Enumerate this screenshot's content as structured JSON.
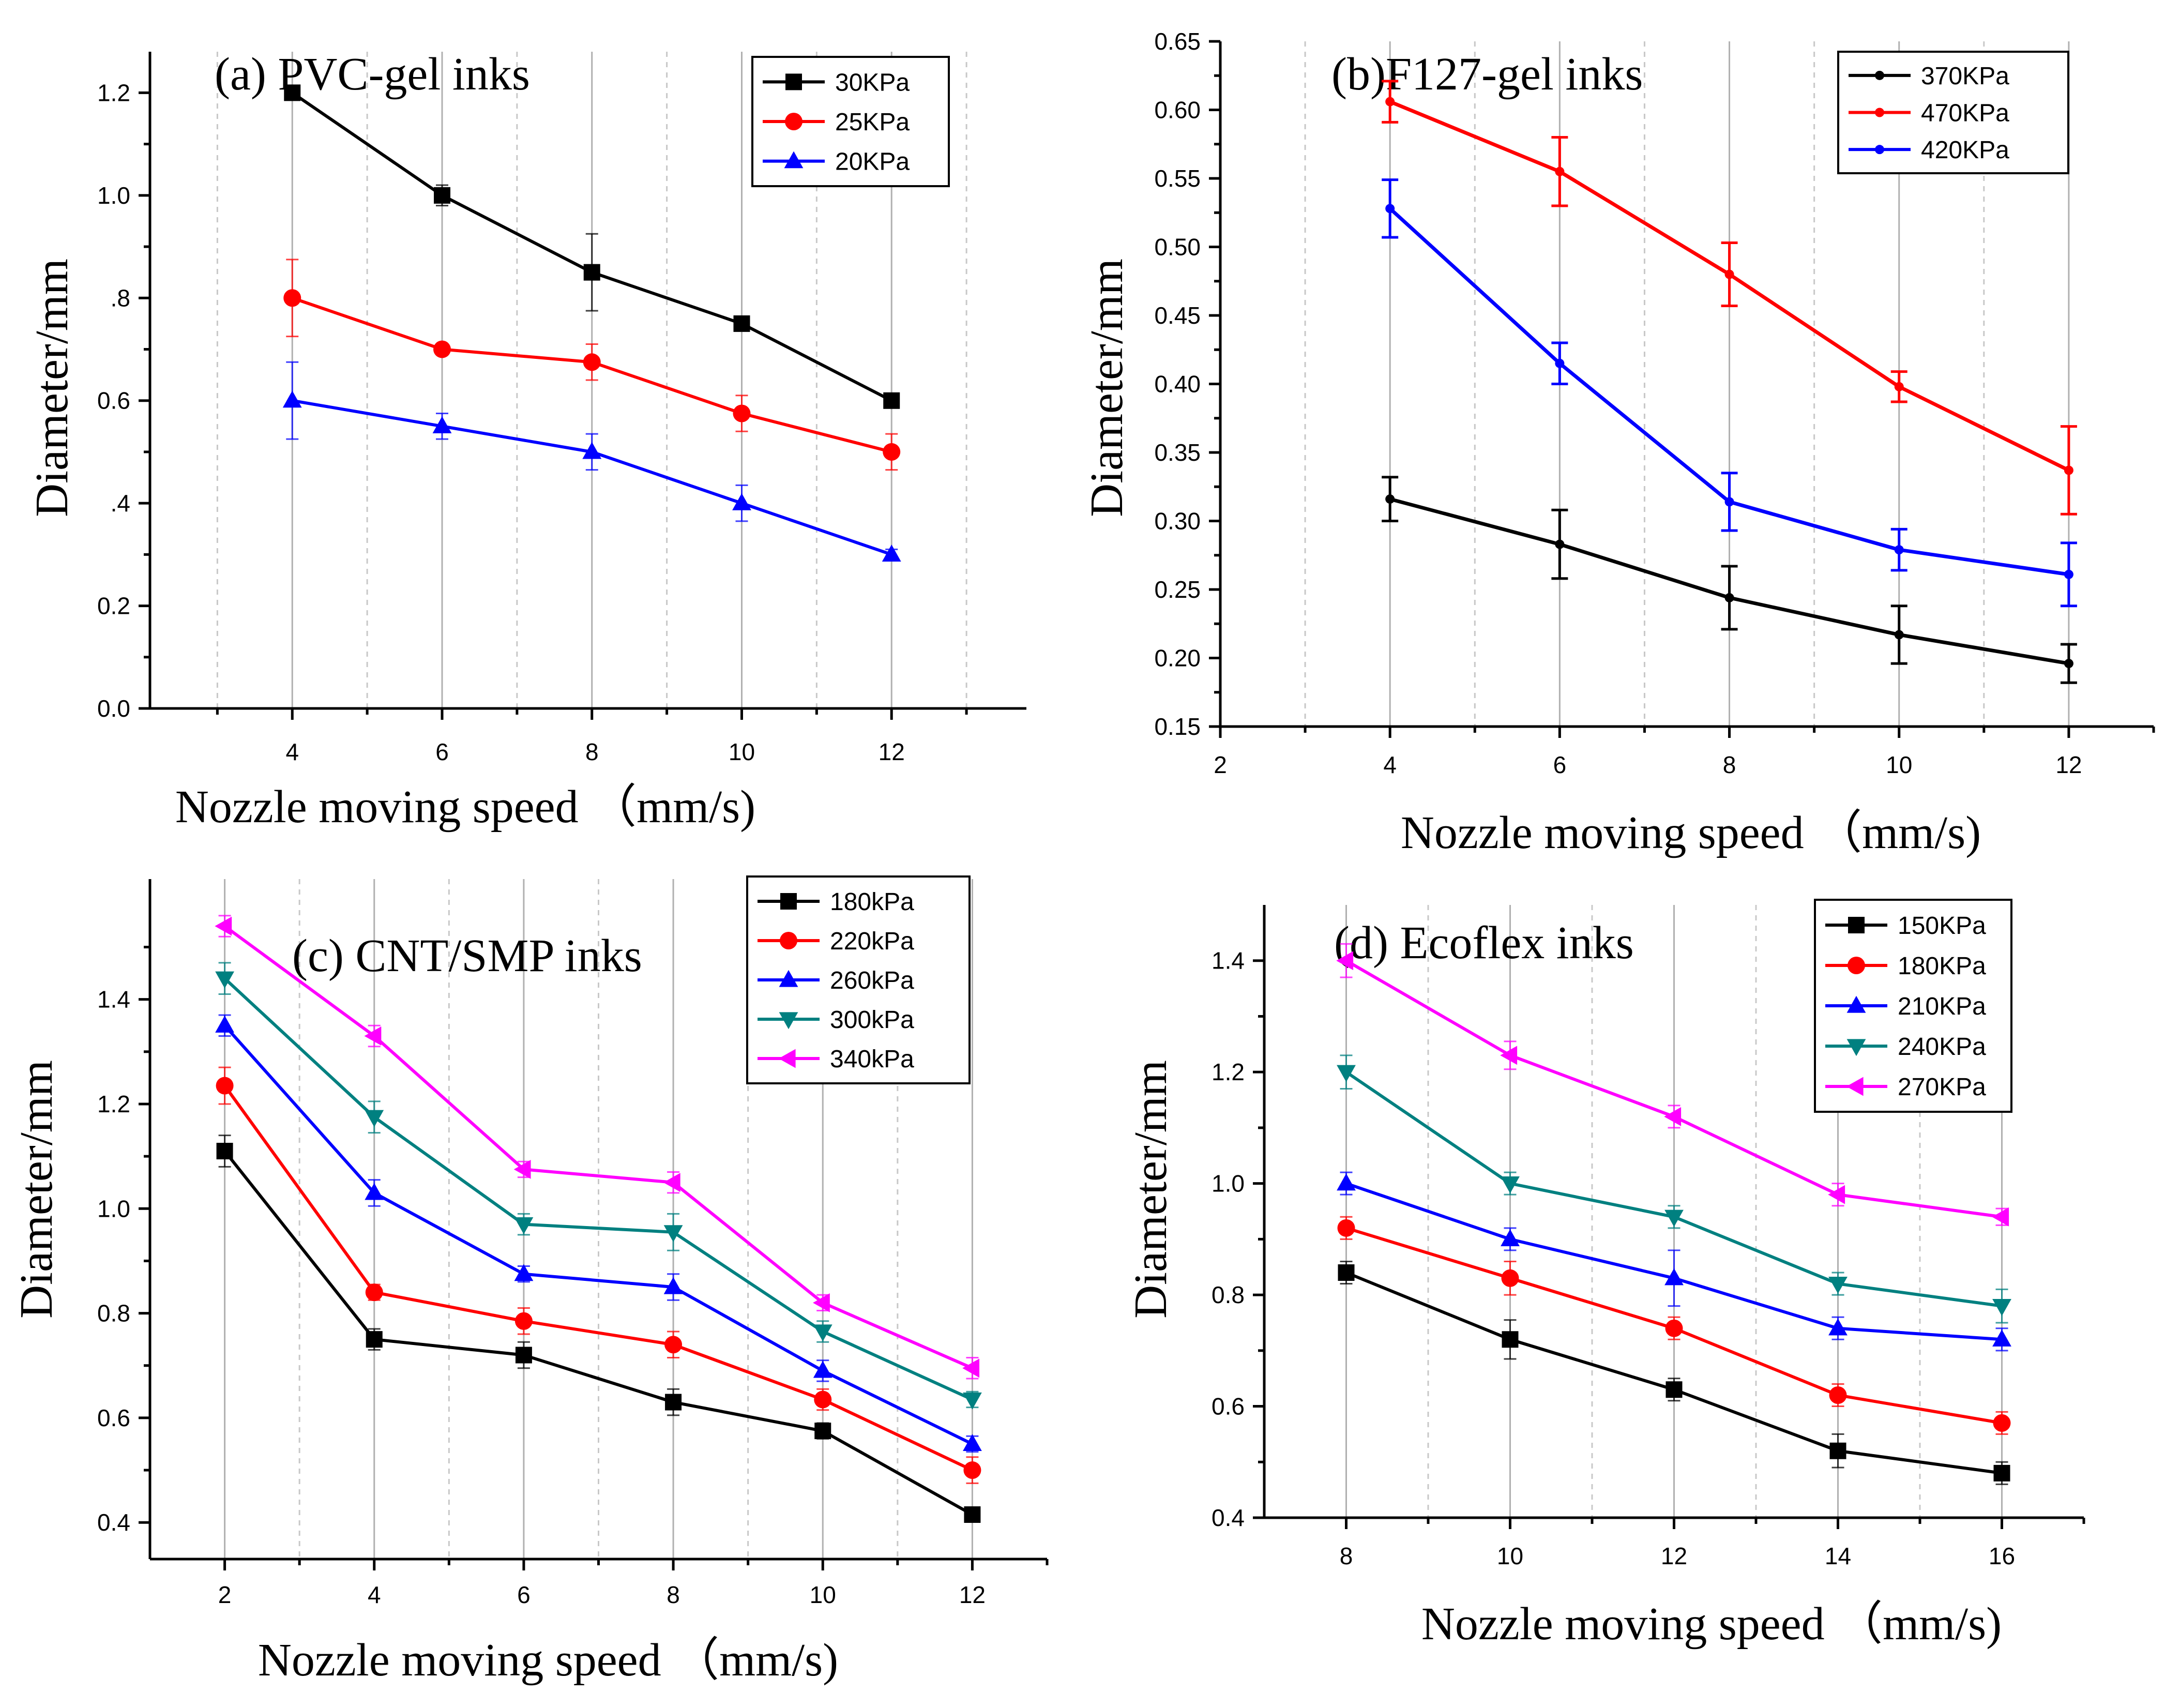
{
  "chart_data": [
    {
      "id": "a",
      "type": "line",
      "title": "(a) PVC-gel inks",
      "xlabel": "Nozzle moving speed （mm/s)",
      "ylabel": "Diameter/mm",
      "xlim": [
        2.1,
        13.8
      ],
      "ylim": [
        0.0,
        1.28
      ],
      "xticks": [
        4,
        6,
        8,
        10,
        12
      ],
      "xtick_labels": [
        "4",
        "6",
        "8",
        "10",
        "12"
      ],
      "yticks": [
        0.0,
        0.2,
        0.4,
        0.6,
        0.8,
        1.0,
        1.2
      ],
      "ytick_labels": [
        "0.0",
        "0.2",
        ".4",
        "0.6",
        ".8",
        "1.0",
        "1.2"
      ],
      "x": [
        4,
        6,
        8,
        10,
        12
      ],
      "legend_position": "top-right",
      "series": [
        {
          "name": "30KPa",
          "color": "#000000",
          "marker": "square",
          "values": [
            1.2,
            1.0,
            0.85,
            0.75,
            0.6
          ],
          "errors": [
            0.01,
            0.02,
            0.075,
            0.01,
            0.01
          ]
        },
        {
          "name": "25KPa",
          "color": "#ff0000",
          "marker": "circle",
          "values": [
            0.8,
            0.7,
            0.675,
            0.575,
            0.5
          ],
          "errors": [
            0.075,
            0.01,
            0.035,
            0.035,
            0.035
          ]
        },
        {
          "name": "20KPa",
          "color": "#0000ff",
          "marker": "triangle-up",
          "values": [
            0.6,
            0.55,
            0.5,
            0.4,
            0.3
          ],
          "errors": [
            0.075,
            0.025,
            0.035,
            0.035,
            0.01
          ]
        }
      ]
    },
    {
      "id": "b",
      "type": "line",
      "title": "(b)F127-gel inks",
      "xlabel": "Nozzle moving speed （mm/s)",
      "ylabel": "Diameter/mm",
      "xlim": [
        2,
        13
      ],
      "ylim": [
        0.15,
        0.65
      ],
      "xticks": [
        2,
        4,
        6,
        8,
        10,
        12
      ],
      "xtick_labels": [
        "2",
        "4",
        "6",
        "8",
        "10",
        "12"
      ],
      "yticks": [
        0.15,
        0.2,
        0.25,
        0.3,
        0.35,
        0.4,
        0.45,
        0.5,
        0.55,
        0.6,
        0.65
      ],
      "ytick_labels": [
        "0.15",
        "0.20",
        "0.25",
        "0.30",
        "0.35",
        "0.40",
        "0.45",
        "0.50",
        "0.55",
        "0.60",
        "0.65"
      ],
      "x": [
        4,
        6,
        8,
        10,
        12
      ],
      "legend_position": "top-right",
      "series": [
        {
          "name": "370KPa",
          "color": "#000000",
          "marker": "dot",
          "values": [
            0.316,
            0.283,
            0.244,
            0.217,
            0.196
          ],
          "errors": [
            0.016,
            0.025,
            0.023,
            0.021,
            0.014
          ]
        },
        {
          "name": "470KPa",
          "color": "#ff0000",
          "marker": "dot",
          "values": [
            0.606,
            0.555,
            0.48,
            0.398,
            0.337
          ],
          "errors": [
            0.015,
            0.025,
            0.023,
            0.011,
            0.032
          ]
        },
        {
          "name": "420KPa",
          "color": "#0000ff",
          "marker": "dot",
          "values": [
            0.528,
            0.415,
            0.314,
            0.279,
            0.261
          ],
          "errors": [
            0.021,
            0.015,
            0.021,
            0.015,
            0.023
          ]
        }
      ]
    },
    {
      "id": "c",
      "type": "line",
      "title": "(c) CNT/SMP inks",
      "xlabel": "Nozzle moving speed （mm/s)",
      "ylabel": "Diameter/mm",
      "xlim": [
        1.0,
        13.0
      ],
      "ylim": [
        0.33,
        1.63
      ],
      "xticks": [
        2,
        4,
        6,
        8,
        10,
        12
      ],
      "xtick_labels": [
        "2",
        "4",
        "6",
        "8",
        "10",
        "12"
      ],
      "yticks": [
        0.4,
        0.6,
        0.8,
        1.0,
        1.2,
        1.4
      ],
      "ytick_labels": [
        "0.4",
        "0.6",
        "0.8",
        "1.0",
        "1.2",
        "1.4"
      ],
      "x": [
        2,
        4,
        6,
        8,
        10,
        12
      ],
      "legend_position": "top-right",
      "series": [
        {
          "name": "180kPa",
          "color": "#000000",
          "marker": "square",
          "values": [
            1.11,
            0.75,
            0.72,
            0.63,
            0.575,
            0.415
          ],
          "errors": [
            0.03,
            0.02,
            0.025,
            0.025,
            0.015,
            0.01
          ]
        },
        {
          "name": "220kPa",
          "color": "#ff0000",
          "marker": "circle",
          "values": [
            1.235,
            0.84,
            0.785,
            0.74,
            0.635,
            0.5
          ],
          "errors": [
            0.035,
            0.015,
            0.025,
            0.025,
            0.02,
            0.025
          ]
        },
        {
          "name": "260kPa",
          "color": "#0000ff",
          "marker": "triangle-up",
          "values": [
            1.35,
            1.03,
            0.875,
            0.85,
            0.69,
            0.55
          ],
          "errors": [
            0.02,
            0.025,
            0.015,
            0.025,
            0.02,
            0.015
          ]
        },
        {
          "name": "300kPa",
          "color": "#008080",
          "marker": "triangle-down",
          "values": [
            1.44,
            1.175,
            0.97,
            0.955,
            0.765,
            0.635
          ],
          "errors": [
            0.03,
            0.03,
            0.02,
            0.035,
            0.02,
            0.015
          ]
        },
        {
          "name": "340kPa",
          "color": "#ff00ff",
          "marker": "triangle-left",
          "values": [
            1.54,
            1.33,
            1.075,
            1.05,
            0.82,
            0.695
          ],
          "errors": [
            0.02,
            0.02,
            0.015,
            0.02,
            0.015,
            0.02
          ]
        }
      ]
    },
    {
      "id": "d",
      "type": "line",
      "title": "(d) Ecoflex inks",
      "xlabel": "Nozzle moving speed （mm/s)",
      "ylabel": "Diameter/mm",
      "xlim": [
        7.0,
        17.0
      ],
      "ylim": [
        0.4,
        1.5
      ],
      "xticks": [
        8,
        10,
        12,
        14,
        16
      ],
      "xtick_labels": [
        "8",
        "10",
        "12",
        "14",
        "16"
      ],
      "yticks": [
        0.4,
        0.6,
        0.8,
        1.0,
        1.2,
        1.4
      ],
      "ytick_labels": [
        "0.4",
        "0.6",
        "0.8",
        "1.0",
        "1.2",
        "1.4"
      ],
      "x": [
        8,
        10,
        12,
        14,
        16
      ],
      "legend_position": "top-right",
      "series": [
        {
          "name": "150KPa",
          "color": "#000000",
          "marker": "square",
          "values": [
            0.84,
            0.72,
            0.63,
            0.52,
            0.48
          ],
          "errors": [
            0.02,
            0.035,
            0.02,
            0.03,
            0.02
          ]
        },
        {
          "name": "180KPa",
          "color": "#ff0000",
          "marker": "circle",
          "values": [
            0.92,
            0.83,
            0.74,
            0.62,
            0.57
          ],
          "errors": [
            0.02,
            0.03,
            0.02,
            0.02,
            0.02
          ]
        },
        {
          "name": "210KPa",
          "color": "#0000ff",
          "marker": "triangle-up",
          "values": [
            1.0,
            0.9,
            0.83,
            0.74,
            0.72
          ],
          "errors": [
            0.02,
            0.02,
            0.05,
            0.02,
            0.02
          ]
        },
        {
          "name": "240KPa",
          "color": "#008080",
          "marker": "triangle-down",
          "values": [
            1.2,
            1.0,
            0.94,
            0.82,
            0.78
          ],
          "errors": [
            0.03,
            0.02,
            0.02,
            0.02,
            0.03
          ]
        },
        {
          "name": "270KPa",
          "color": "#ff00ff",
          "marker": "triangle-left",
          "values": [
            1.4,
            1.23,
            1.12,
            0.98,
            0.94
          ],
          "errors": [
            0.03,
            0.025,
            0.02,
            0.02,
            0.015
          ]
        }
      ]
    }
  ]
}
